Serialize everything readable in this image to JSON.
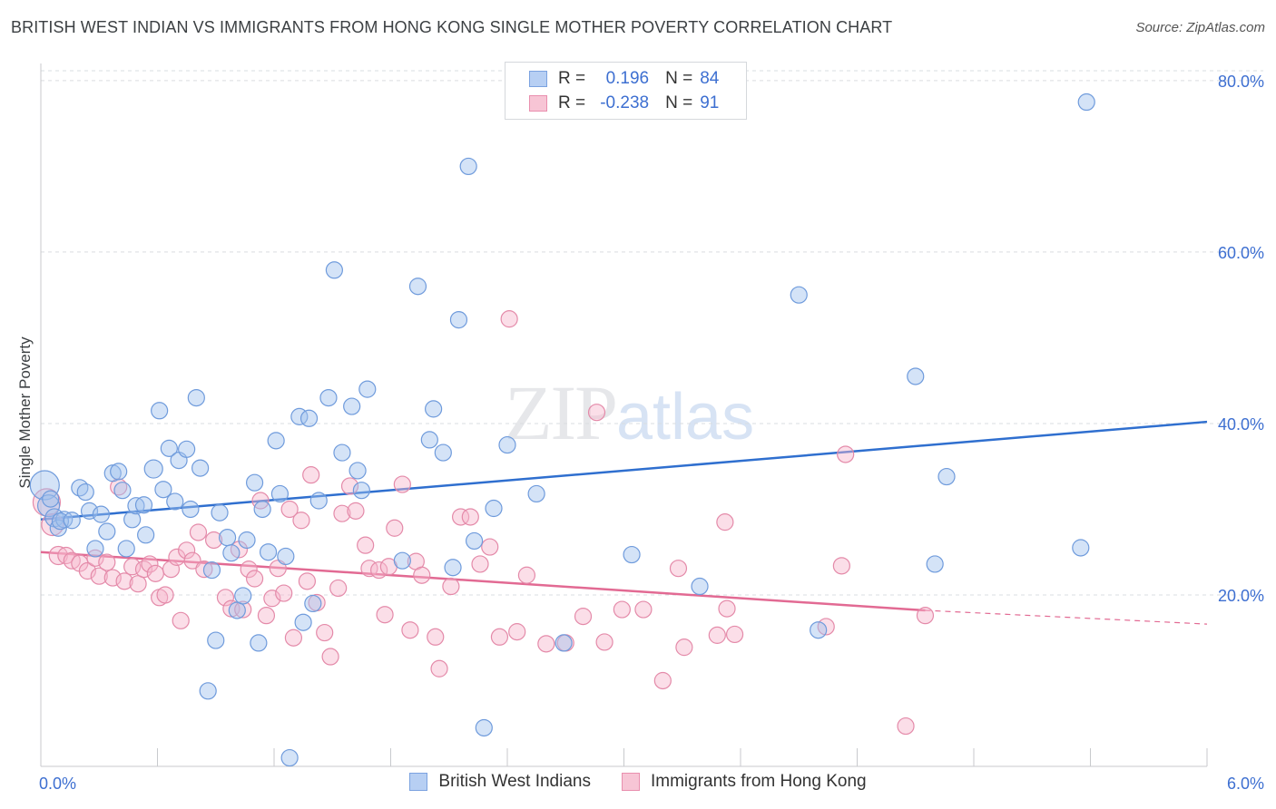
{
  "title": "BRITISH WEST INDIAN VS IMMIGRANTS FROM HONG KONG SINGLE MOTHER POVERTY CORRELATION CHART",
  "source": "Source: ZipAtlas.com",
  "watermark": {
    "zip": "ZIP",
    "atlas": "atlas"
  },
  "legend": {
    "rows": [
      {
        "r_label": "R =",
        "r_value": "0.196",
        "n_label": "N =",
        "n_value": "84",
        "color": "#b7cff3",
        "border": "#7ba2e0"
      },
      {
        "r_label": "R =",
        "r_value": "-0.238",
        "n_label": "N =",
        "n_value": "91",
        "color": "#f7c5d5",
        "border": "#e98fae"
      }
    ]
  },
  "colors": {
    "blue_fill": "rgba(160,192,238,0.45)",
    "blue_stroke": "#6f9bdc",
    "blue_line": "#2f6fcf",
    "pink_fill": "rgba(246,182,204,0.45)",
    "pink_stroke": "#e48aa9",
    "pink_line": "#e26a93",
    "grid": "#dadce0",
    "axis_label": "#3d6fd1"
  },
  "chart_data": {
    "type": "scatter",
    "title": "BRITISH WEST INDIAN VS IMMIGRANTS FROM HONG KONG SINGLE MOTHER POVERTY CORRELATION CHART",
    "xlabel": "",
    "ylabel": "Single Mother Poverty",
    "xlim": [
      0,
      6
    ],
    "ylim": [
      0,
      82
    ],
    "x_tick_labels": [
      "0.0%",
      "6.0%"
    ],
    "y_ticks": [
      20,
      40,
      60,
      80
    ],
    "y_tick_labels": [
      "20.0%",
      "40.0%",
      "60.0%",
      "80.0%"
    ],
    "grid": true,
    "legend_position": "top-center",
    "series": [
      {
        "name": "British West Indians",
        "color": "#6f9bdc",
        "trend": {
          "x": [
            0,
            6
          ],
          "y": [
            28.8,
            40.2
          ]
        },
        "points": [
          [
            0.02,
            32.8,
            16
          ],
          [
            0.04,
            30.4,
            12
          ],
          [
            0.07,
            29.0,
            10
          ],
          [
            0.09,
            27.8,
            9
          ],
          [
            0.12,
            28.8,
            9
          ],
          [
            0.2,
            32.5,
            9
          ],
          [
            0.23,
            32.0,
            9
          ],
          [
            0.25,
            29.8,
            9
          ],
          [
            0.28,
            25.4,
            9
          ],
          [
            0.31,
            29.4,
            9
          ],
          [
            0.34,
            27.4,
            9
          ],
          [
            0.37,
            34.2,
            9
          ],
          [
            0.4,
            34.4,
            9
          ],
          [
            0.42,
            32.2,
            9
          ],
          [
            0.44,
            25.4,
            9
          ],
          [
            0.47,
            28.8,
            9
          ],
          [
            0.49,
            30.4,
            9
          ],
          [
            0.53,
            30.5,
            9
          ],
          [
            0.54,
            27.0,
            9
          ],
          [
            0.58,
            34.7,
            10
          ],
          [
            0.61,
            41.5,
            9
          ],
          [
            0.63,
            32.3,
            9
          ],
          [
            0.66,
            37.1,
            9
          ],
          [
            0.69,
            30.9,
            9
          ],
          [
            0.71,
            35.7,
            9
          ],
          [
            0.75,
            37.0,
            9
          ],
          [
            0.77,
            30.0,
            9
          ],
          [
            0.8,
            43.0,
            9
          ],
          [
            0.82,
            34.8,
            9
          ],
          [
            0.88,
            22.9,
            9
          ],
          [
            0.9,
            14.7,
            9
          ],
          [
            0.92,
            29.6,
            9
          ],
          [
            0.96,
            26.7,
            9
          ],
          [
            0.98,
            24.9,
            9
          ],
          [
            1.01,
            18.2,
            9
          ],
          [
            1.04,
            19.9,
            9
          ],
          [
            1.06,
            26.4,
            9
          ],
          [
            1.1,
            33.1,
            9
          ],
          [
            1.12,
            14.4,
            9
          ],
          [
            1.14,
            30.0,
            9
          ],
          [
            1.17,
            25.0,
            9
          ],
          [
            1.21,
            38.0,
            9
          ],
          [
            1.23,
            31.8,
            9
          ],
          [
            1.26,
            24.5,
            9
          ],
          [
            1.28,
            1.0,
            9
          ],
          [
            1.33,
            40.8,
            9
          ],
          [
            1.38,
            40.6,
            9
          ],
          [
            1.35,
            16.8,
            9
          ],
          [
            1.4,
            19.0,
            9
          ],
          [
            1.43,
            31.0,
            9
          ],
          [
            1.48,
            43.0,
            9
          ],
          [
            1.51,
            57.9,
            9
          ],
          [
            1.55,
            36.6,
            9
          ],
          [
            1.6,
            42.0,
            9
          ],
          [
            1.63,
            34.5,
            9
          ],
          [
            1.65,
            32.2,
            9
          ],
          [
            1.68,
            44.0,
            9
          ],
          [
            0.86,
            8.8,
            9
          ],
          [
            1.86,
            24.0,
            9
          ],
          [
            1.94,
            56.0,
            9
          ],
          [
            2.0,
            38.1,
            9
          ],
          [
            2.02,
            41.7,
            9
          ],
          [
            2.07,
            36.6,
            9
          ],
          [
            2.12,
            23.2,
            9
          ],
          [
            2.15,
            52.1,
            9
          ],
          [
            2.2,
            70.0,
            9
          ],
          [
            2.23,
            26.3,
            9
          ],
          [
            2.28,
            4.5,
            9
          ],
          [
            2.33,
            30.1,
            9
          ],
          [
            2.4,
            37.5,
            9
          ],
          [
            2.55,
            31.8,
            9
          ],
          [
            2.69,
            14.4,
            9
          ],
          [
            3.04,
            24.7,
            9
          ],
          [
            3.39,
            21.0,
            9
          ],
          [
            3.9,
            55.0,
            9
          ],
          [
            4.0,
            15.9,
            9
          ],
          [
            4.5,
            45.5,
            9
          ],
          [
            4.6,
            23.6,
            9
          ],
          [
            4.66,
            33.8,
            9
          ],
          [
            5.35,
            25.5,
            9
          ],
          [
            5.38,
            77.5,
            9
          ],
          [
            0.05,
            31.2,
            9
          ],
          [
            0.1,
            28.6,
            9
          ],
          [
            0.16,
            28.7,
            9
          ]
        ]
      },
      {
        "name": "Immigrants from Hong Kong",
        "color": "#e48aa9",
        "trend": {
          "x": [
            0,
            4.55
          ],
          "y": [
            25.0,
            18.2
          ]
        },
        "trend_dashed": {
          "x": [
            4.55,
            6
          ],
          "y": [
            18.2,
            16.6
          ]
        },
        "points": [
          [
            0.03,
            30.8,
            15
          ],
          [
            0.06,
            28.2,
            12
          ],
          [
            0.09,
            24.6,
            10
          ],
          [
            0.13,
            24.6,
            9
          ],
          [
            0.16,
            24.0,
            9
          ],
          [
            0.2,
            23.7,
            9
          ],
          [
            0.24,
            22.8,
            9
          ],
          [
            0.28,
            24.3,
            9
          ],
          [
            0.3,
            22.2,
            9
          ],
          [
            0.34,
            23.8,
            9
          ],
          [
            0.37,
            22.0,
            9
          ],
          [
            0.4,
            32.6,
            9
          ],
          [
            0.43,
            21.6,
            9
          ],
          [
            0.47,
            23.3,
            9
          ],
          [
            0.5,
            21.3,
            9
          ],
          [
            0.53,
            23.0,
            9
          ],
          [
            0.56,
            23.6,
            9
          ],
          [
            0.59,
            22.5,
            9
          ],
          [
            0.61,
            19.7,
            9
          ],
          [
            0.64,
            20.0,
            9
          ],
          [
            0.67,
            23.0,
            9
          ],
          [
            0.7,
            24.4,
            9
          ],
          [
            0.72,
            17.0,
            9
          ],
          [
            0.75,
            25.2,
            9
          ],
          [
            0.78,
            24.0,
            9
          ],
          [
            0.81,
            27.3,
            9
          ],
          [
            0.84,
            23.0,
            9
          ],
          [
            0.89,
            26.4,
            9
          ],
          [
            0.95,
            19.7,
            9
          ],
          [
            0.98,
            18.4,
            9
          ],
          [
            1.02,
            25.3,
            9
          ],
          [
            1.04,
            18.3,
            9
          ],
          [
            1.07,
            23.0,
            9
          ],
          [
            1.1,
            21.9,
            9
          ],
          [
            1.13,
            31.0,
            9
          ],
          [
            1.16,
            17.6,
            9
          ],
          [
            1.19,
            19.6,
            9
          ],
          [
            1.22,
            23.1,
            9
          ],
          [
            1.25,
            20.2,
            9
          ],
          [
            1.28,
            30.0,
            9
          ],
          [
            1.3,
            15.0,
            9
          ],
          [
            1.34,
            28.7,
            9
          ],
          [
            1.37,
            21.6,
            9
          ],
          [
            1.39,
            34.0,
            9
          ],
          [
            1.42,
            19.1,
            9
          ],
          [
            1.46,
            15.6,
            9
          ],
          [
            1.49,
            12.8,
            9
          ],
          [
            1.53,
            20.8,
            9
          ],
          [
            1.55,
            29.5,
            9
          ],
          [
            1.59,
            32.7,
            9
          ],
          [
            1.62,
            29.8,
            9
          ],
          [
            1.67,
            25.8,
            9
          ],
          [
            1.69,
            23.1,
            9
          ],
          [
            1.74,
            22.9,
            9
          ],
          [
            1.77,
            17.7,
            9
          ],
          [
            1.79,
            23.3,
            9
          ],
          [
            1.82,
            27.8,
            9
          ],
          [
            1.86,
            32.9,
            9
          ],
          [
            1.9,
            15.9,
            9
          ],
          [
            1.93,
            23.9,
            9
          ],
          [
            1.96,
            22.3,
            9
          ],
          [
            2.03,
            15.1,
            9
          ],
          [
            2.05,
            11.4,
            9
          ],
          [
            2.11,
            21.0,
            9
          ],
          [
            2.16,
            29.1,
            9
          ],
          [
            2.21,
            29.1,
            9
          ],
          [
            2.26,
            23.6,
            9
          ],
          [
            2.31,
            25.6,
            9
          ],
          [
            2.36,
            15.1,
            9
          ],
          [
            2.41,
            52.2,
            9
          ],
          [
            2.45,
            15.7,
            9
          ],
          [
            2.5,
            22.3,
            9
          ],
          [
            2.6,
            14.3,
            9
          ],
          [
            2.7,
            14.4,
            9
          ],
          [
            2.79,
            17.5,
            9
          ],
          [
            2.86,
            41.3,
            9
          ],
          [
            2.9,
            14.5,
            9
          ],
          [
            2.99,
            18.3,
            9
          ],
          [
            3.1,
            18.3,
            9
          ],
          [
            3.2,
            10.0,
            9
          ],
          [
            3.28,
            23.1,
            9
          ],
          [
            3.31,
            13.9,
            9
          ],
          [
            3.48,
            15.3,
            9
          ],
          [
            3.52,
            28.5,
            9
          ],
          [
            3.53,
            18.4,
            9
          ],
          [
            3.57,
            15.4,
            9
          ],
          [
            4.04,
            16.3,
            9
          ],
          [
            4.12,
            23.4,
            9
          ],
          [
            4.14,
            36.4,
            9
          ],
          [
            4.45,
            4.7,
            9
          ],
          [
            4.55,
            17.6,
            9
          ]
        ]
      }
    ]
  },
  "bottom_legend": [
    {
      "label": "British West Indians",
      "color": "#b7cff3",
      "border": "#7ba2e0"
    },
    {
      "label": "Immigrants from Hong Kong",
      "color": "#f7c5d5",
      "border": "#e98fae"
    }
  ]
}
